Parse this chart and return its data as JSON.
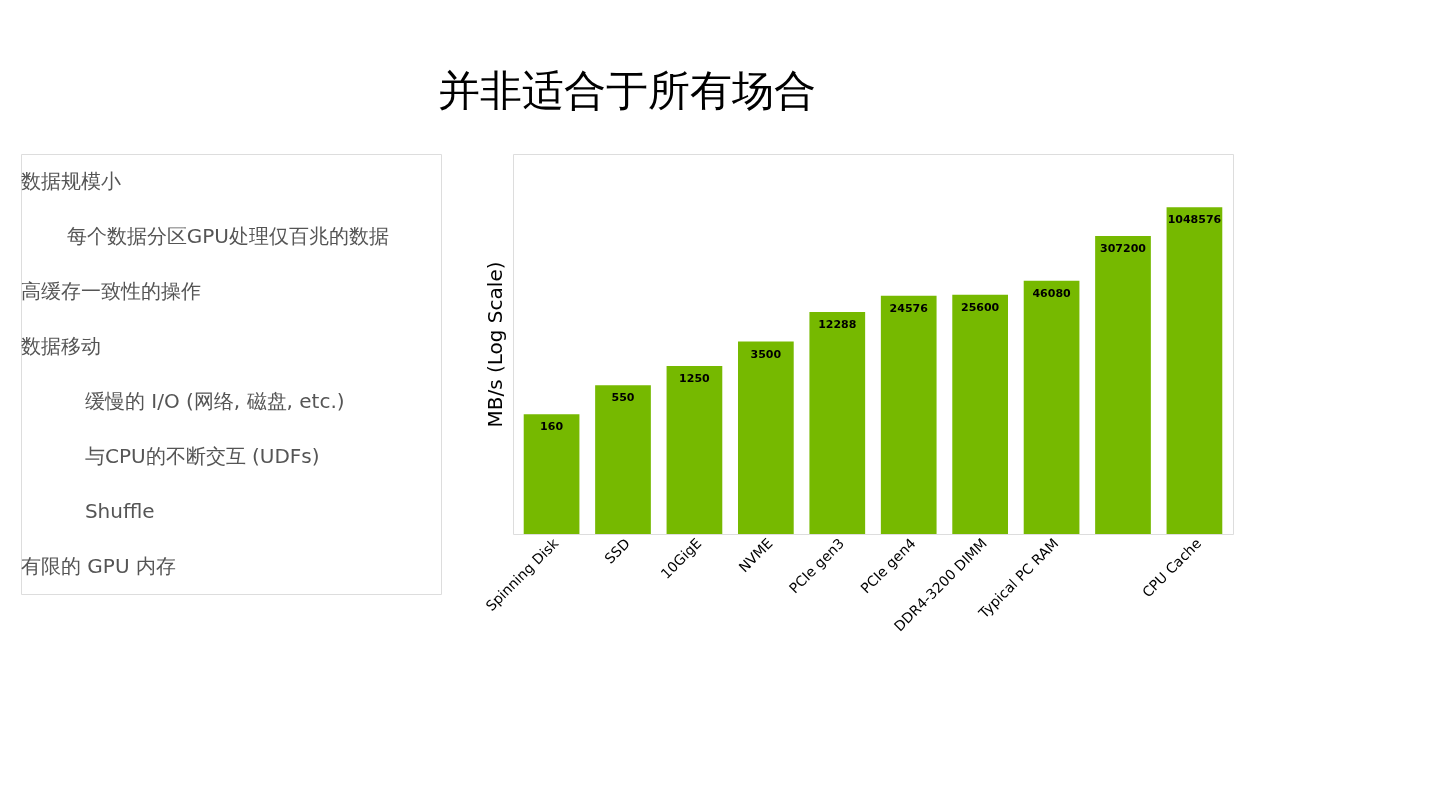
{
  "chart_data": {
    "type": "bar",
    "title": "并非适合于所有场合",
    "ylabel": "MB/s (Log Scale)",
    "categories": [
      "Spinning Disk",
      "SSD",
      "10GigE",
      "NVME",
      "PCIe gen3",
      "PCIe gen4",
      "DDR4-3200 DIMM",
      "Typical PC RAM",
      null,
      "CPU Cache"
    ],
    "values": [
      160,
      550,
      1250,
      3500,
      12288,
      24576,
      25600,
      46080,
      307200,
      1048576
    ],
    "color": "#76b900",
    "log": true,
    "ylim": [
      1,
      10000000
    ],
    "data_labels": true,
    "grid": false,
    "annotations": [
      "数据规模小",
      "每个数据分区GPU处理仅百兆的数据",
      "高缓存一致性的操作",
      "数据移动",
      "缓慢的 I/O (网络, 磁盘, etc.)",
      "与CPU的不断交互 (UDFs)",
      "Shuffle",
      "有限的 GPU 内存"
    ]
  }
}
